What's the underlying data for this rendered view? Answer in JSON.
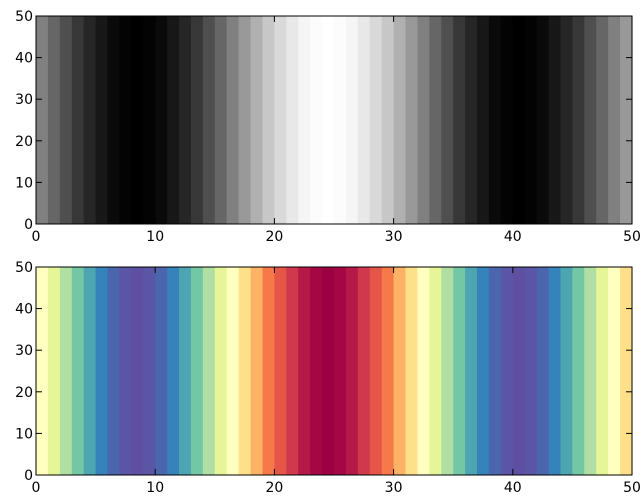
{
  "chart_data": [
    {
      "type": "heatmap",
      "title": "",
      "xlabel": "",
      "ylabel": "",
      "colormap": "gray",
      "xlim": [
        0,
        50
      ],
      "ylim": [
        0,
        50
      ],
      "x_ticks": [
        0,
        10,
        20,
        30,
        40,
        50
      ],
      "y_ticks": [
        0,
        10,
        20,
        30,
        40,
        50
      ],
      "x_tick_labels": [
        "0",
        "10",
        "20",
        "30",
        "40",
        "50"
      ],
      "y_tick_labels": [
        "0",
        "10",
        "20",
        "30",
        "40",
        "50"
      ],
      "grid": false,
      "column_values": [
        0.5,
        0.4,
        0.31,
        0.22,
        0.15,
        0.09,
        0.04,
        0.01,
        0.0,
        0.01,
        0.04,
        0.09,
        0.15,
        0.22,
        0.31,
        0.4,
        0.5,
        0.6,
        0.69,
        0.78,
        0.85,
        0.91,
        0.96,
        0.99,
        1.0,
        0.99,
        0.96,
        0.91,
        0.85,
        0.78,
        0.69,
        0.6,
        0.5,
        0.4,
        0.31,
        0.22,
        0.15,
        0.09,
        0.04,
        0.01,
        0.0,
        0.01,
        0.04,
        0.09,
        0.15,
        0.22,
        0.31,
        0.4,
        0.5,
        0.6
      ]
    },
    {
      "type": "heatmap",
      "title": "",
      "xlabel": "",
      "ylabel": "",
      "colormap": "Spectral",
      "xlim": [
        0,
        50
      ],
      "ylim": [
        0,
        50
      ],
      "x_ticks": [
        0,
        10,
        20,
        30,
        40,
        50
      ],
      "y_ticks": [
        0,
        10,
        20,
        30,
        40,
        50
      ],
      "x_tick_labels": [
        "0",
        "10",
        "20",
        "30",
        "40",
        "50"
      ],
      "y_tick_labels": [
        "0",
        "10",
        "20",
        "30",
        "40",
        "50"
      ],
      "grid": false,
      "column_values": [
        0.5,
        0.4,
        0.31,
        0.22,
        0.15,
        0.09,
        0.04,
        0.01,
        0.0,
        0.01,
        0.04,
        0.09,
        0.15,
        0.22,
        0.31,
        0.4,
        0.5,
        0.6,
        0.69,
        0.78,
        0.85,
        0.91,
        0.96,
        0.99,
        1.0,
        0.99,
        0.96,
        0.91,
        0.85,
        0.78,
        0.69,
        0.6,
        0.5,
        0.4,
        0.31,
        0.22,
        0.15,
        0.09,
        0.04,
        0.01,
        0.0,
        0.01,
        0.04,
        0.09,
        0.15,
        0.22,
        0.31,
        0.4,
        0.5,
        0.6
      ]
    }
  ]
}
